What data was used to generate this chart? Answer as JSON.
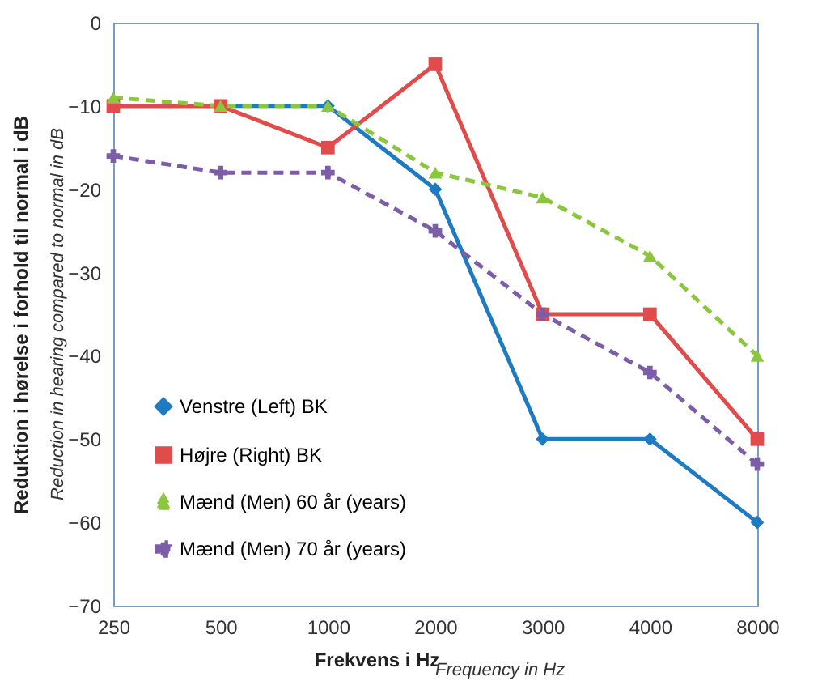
{
  "chart_data": {
    "type": "line",
    "xlabel": "Frekvens i Hz",
    "ylabel": "Reduktion i hørelse i forhold til normal i dB",
    "annotations": [
      "Reduction in hearing compared to normal in dB",
      "Frequency in Hz"
    ],
    "categories": [
      "250",
      "500",
      "1000",
      "2000",
      "3000",
      "4000",
      "8000"
    ],
    "ylim": [
      -70,
      0
    ],
    "yticks": [
      -70,
      -60,
      -50,
      -40,
      -30,
      -20,
      -10,
      0
    ],
    "grid": false,
    "legend": "bottom left",
    "series": [
      {
        "name": "Venstre (Left) BK",
        "color": "#1f7bc1",
        "marker": "diamond",
        "line_style": "solid",
        "values": [
          -10,
          -10,
          -10,
          -20,
          -50,
          -50,
          -60
        ]
      },
      {
        "name": "Højre (Right) BK",
        "color": "#e04b4b",
        "marker": "square",
        "line_style": "solid",
        "values": [
          -10,
          -10,
          -15,
          -5,
          -35,
          -35,
          -50
        ]
      },
      {
        "name": "Mænd (Men) 60 år (years)",
        "color": "#8cc63f",
        "marker": "triangle",
        "line_style": "dashed",
        "values": [
          -9,
          -10,
          -10,
          -18,
          -21,
          -28,
          -40
        ]
      },
      {
        "name": "Mænd (Men) 70 år (years)",
        "color": "#7b5ea7",
        "marker": "cross",
        "line_style": "dashed",
        "values": [
          -16,
          -18,
          -18,
          -25,
          -35,
          -42,
          -53
        ]
      }
    ]
  }
}
